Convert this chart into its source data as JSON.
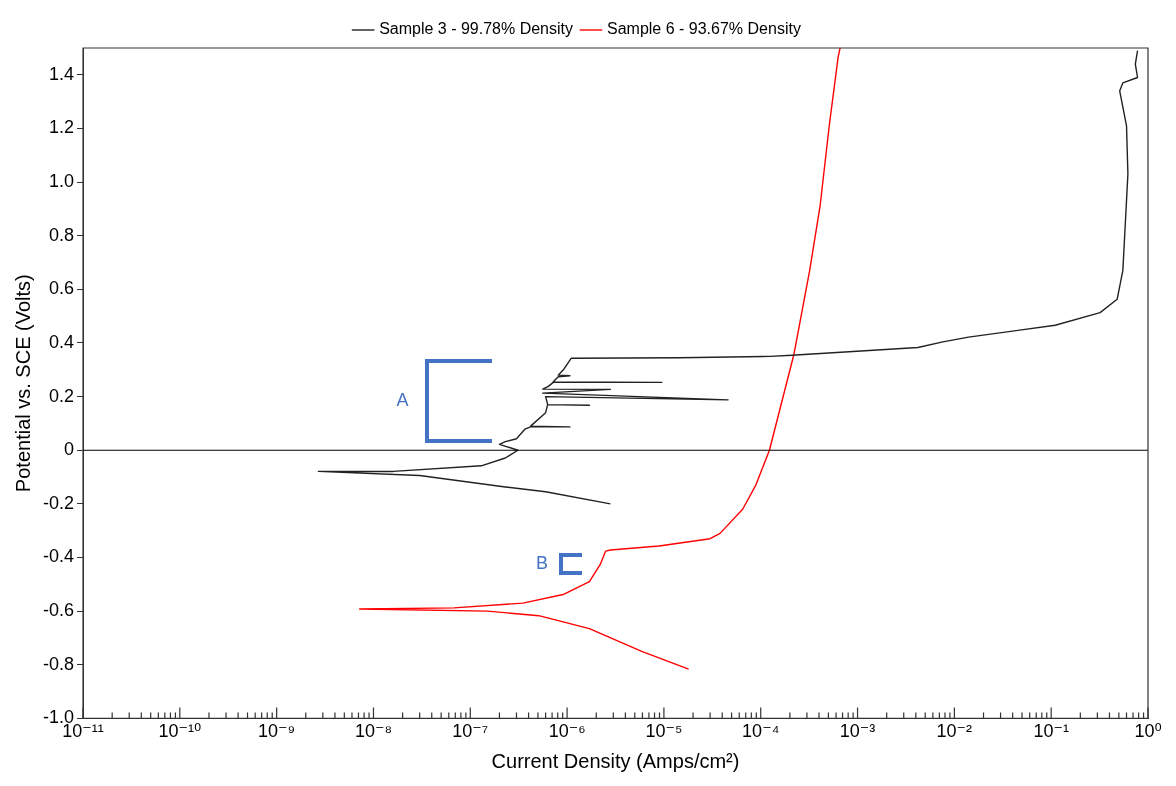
{
  "chart_data": {
    "type": "line",
    "xlabel": "Current Density (Amps/cm²)",
    "ylabel": "Potential vs. SCE (Volts)",
    "log": "x",
    "legend": "top",
    "xlim": [
      1e-11,
      1
    ],
    "ylim": [
      -1,
      1.5
    ],
    "xticks": [
      {
        "value": 1e-11,
        "label": "10⁻¹¹"
      },
      {
        "value": 2e-11,
        "label": null
      },
      {
        "value": 3e-11,
        "label": null
      },
      {
        "value": 4e-11,
        "label": null
      },
      {
        "value": 5e-11,
        "label": null
      },
      {
        "value": 6e-11,
        "label": null
      },
      {
        "value": 7e-11,
        "label": null
      },
      {
        "value": 8e-11,
        "label": null
      },
      {
        "value": 9e-11,
        "label": null
      },
      {
        "value": 1e-10,
        "label": "10⁻¹⁰"
      },
      {
        "value": 2e-10,
        "label": null
      },
      {
        "value": 3e-10,
        "label": null
      },
      {
        "value": 4e-10,
        "label": null
      },
      {
        "value": 5e-10,
        "label": null
      },
      {
        "value": 6e-10,
        "label": null
      },
      {
        "value": 7e-10,
        "label": null
      },
      {
        "value": 8e-10,
        "label": null
      },
      {
        "value": 9e-10,
        "label": null
      },
      {
        "value": 1e-09,
        "label": "10⁻⁹"
      },
      {
        "value": 2e-09,
        "label": null
      },
      {
        "value": 3e-09,
        "label": null
      },
      {
        "value": 4e-09,
        "label": null
      },
      {
        "value": 5e-09,
        "label": null
      },
      {
        "value": 6e-09,
        "label": null
      },
      {
        "value": 7e-09,
        "label": null
      },
      {
        "value": 8e-09,
        "label": null
      },
      {
        "value": 9e-09,
        "label": null
      },
      {
        "value": 1e-08,
        "label": "10⁻⁸"
      },
      {
        "value": 2e-08,
        "label": null
      },
      {
        "value": 3e-08,
        "label": null
      },
      {
        "value": 4e-08,
        "label": null
      },
      {
        "value": 5e-08,
        "label": null
      },
      {
        "value": 6e-08,
        "label": null
      },
      {
        "value": 7e-08,
        "label": null
      },
      {
        "value": 8e-08,
        "label": null
      },
      {
        "value": 9e-08,
        "label": null
      },
      {
        "value": 1e-07,
        "label": "10⁻⁷"
      },
      {
        "value": 2e-07,
        "label": null
      },
      {
        "value": 3e-07,
        "label": null
      },
      {
        "value": 4e-07,
        "label": null
      },
      {
        "value": 5e-07,
        "label": null
      },
      {
        "value": 6e-07,
        "label": null
      },
      {
        "value": 7e-07,
        "label": null
      },
      {
        "value": 8e-07,
        "label": null
      },
      {
        "value": 9e-07,
        "label": null
      },
      {
        "value": 1e-06,
        "label": "10⁻⁶"
      },
      {
        "value": 2e-06,
        "label": null
      },
      {
        "value": 3e-06,
        "label": null
      },
      {
        "value": 4e-06,
        "label": null
      },
      {
        "value": 5e-06,
        "label": null
      },
      {
        "value": 6e-06,
        "label": null
      },
      {
        "value": 7e-06,
        "label": null
      },
      {
        "value": 8e-06,
        "label": null
      },
      {
        "value": 9e-06,
        "label": null
      },
      {
        "value": 1e-05,
        "label": "10⁻⁵"
      },
      {
        "value": 2e-05,
        "label": null
      },
      {
        "value": 3e-05,
        "label": null
      },
      {
        "value": 4e-05,
        "label": null
      },
      {
        "value": 5e-05,
        "label": null
      },
      {
        "value": 6e-05,
        "label": null
      },
      {
        "value": 7e-05,
        "label": null
      },
      {
        "value": 8e-05,
        "label": null
      },
      {
        "value": 9e-05,
        "label": null
      },
      {
        "value": 0.0001,
        "label": "10⁻⁴"
      },
      {
        "value": 0.0002,
        "label": null
      },
      {
        "value": 0.0003,
        "label": null
      },
      {
        "value": 0.0004,
        "label": null
      },
      {
        "value": 0.0005,
        "label": null
      },
      {
        "value": 0.0006,
        "label": null
      },
      {
        "value": 0.0007,
        "label": null
      },
      {
        "value": 0.0008,
        "label": null
      },
      {
        "value": 0.0009,
        "label": null
      },
      {
        "value": 0.001,
        "label": "10⁻³"
      },
      {
        "value": 0.002,
        "label": null
      },
      {
        "value": 0.003,
        "label": null
      },
      {
        "value": 0.004,
        "label": null
      },
      {
        "value": 0.005,
        "label": null
      },
      {
        "value": 0.006,
        "label": null
      },
      {
        "value": 0.007,
        "label": null
      },
      {
        "value": 0.008,
        "label": null
      },
      {
        "value": 0.009,
        "label": null
      },
      {
        "value": 0.01,
        "label": "10⁻²"
      },
      {
        "value": 0.02,
        "label": null
      },
      {
        "value": 0.03,
        "label": null
      },
      {
        "value": 0.04,
        "label": null
      },
      {
        "value": 0.05,
        "label": null
      },
      {
        "value": 0.06,
        "label": null
      },
      {
        "value": 0.07,
        "label": null
      },
      {
        "value": 0.08,
        "label": null
      },
      {
        "value": 0.09,
        "label": null
      },
      {
        "value": 0.1,
        "label": "10⁻¹"
      },
      {
        "value": 0.2,
        "label": null
      },
      {
        "value": 0.3,
        "label": null
      },
      {
        "value": 0.4,
        "label": null
      },
      {
        "value": 0.5,
        "label": null
      },
      {
        "value": 0.6,
        "label": null
      },
      {
        "value": 0.7,
        "label": null
      },
      {
        "value": 0.8,
        "label": null
      },
      {
        "value": 0.9,
        "label": null
      },
      {
        "value": 1,
        "label": "10⁰"
      }
    ],
    "yticks": [
      {
        "value": -1,
        "label": "-1.0"
      },
      -0.8,
      -0.6,
      -0.4,
      -0.2,
      0,
      0.2,
      0.4,
      0.6,
      0.8,
      {
        "value": 1,
        "label": "1.0"
      },
      1.2,
      1.4
    ],
    "ref_lines": [
      {
        "axis": "y",
        "value": 0,
        "color": "#000000"
      }
    ],
    "annotations": [
      "A",
      "B"
    ],
    "series": [
      {
        "name": "Sample 3 - 99.78% Density",
        "color": "#222222",
        "x": [
          2.8e-06,
          6e-07,
          2.3e-07,
          3e-08,
          2.7e-09,
          1.6e-08,
          1.3e-07,
          2.3e-07,
          3.1e-07,
          2e-07,
          2.3e-07,
          3e-07,
          3.7e-07,
          4.2e-07,
          1.07e-06,
          4.2e-07,
          6e-07,
          6.3e-07,
          1.7e-06,
          6.3e-07,
          6e-07,
          4.6e-05,
          5.6e-07,
          2.8e-06,
          5.6e-07,
          6.4e-07,
          7.2e-07,
          9.5e-06,
          7.2e-07,
          8.1e-07,
          1.07e-06,
          8.1e-07,
          9.3e-07,
          1.1e-06,
          1.45e-05,
          0.000126,
          0.00021,
          0.0042,
          0.0076,
          0.014,
          0.11,
          0.32,
          0.48,
          0.55,
          0.62,
          0.6,
          0.51,
          0.55,
          0.78,
          0.74,
          0.78
        ],
        "values": [
          -0.2,
          -0.155,
          -0.137,
          -0.094,
          -0.079,
          -0.079,
          -0.058,
          -0.029,
          0,
          0.022,
          0.032,
          0.043,
          0.08,
          0.087,
          0.087,
          0.09,
          0.14,
          0.17,
          0.168,
          0.17,
          0.2,
          0.188,
          0.213,
          0.227,
          0.228,
          0.238,
          0.253,
          0.253,
          0.255,
          0.274,
          0.278,
          0.28,
          0.303,
          0.343,
          0.345,
          0.35,
          0.354,
          0.383,
          0.404,
          0.422,
          0.466,
          0.513,
          0.563,
          0.671,
          1.03,
          1.21,
          1.34,
          1.37,
          1.39,
          1.44,
          1.49
        ]
      },
      {
        "name": "Sample 6 - 93.67% Density",
        "color": "#ff0000",
        "x": [
          1.8e-05,
          5.9e-06,
          1.7e-06,
          5.1e-07,
          1.5e-07,
          7.2e-09,
          6.8e-08,
          3.5e-07,
          9.1e-07,
          1.7e-06,
          2.2e-06,
          2.5e-06,
          2.8e-06,
          8.9e-06,
          3e-05,
          3.8e-05,
          6.5e-05,
          7.1e-05,
          8.9e-05,
          0.000123,
          0.00022,
          0.00032,
          0.00041,
          0.00051,
          0.00063,
          0.00066
        ],
        "values": [
          -0.816,
          -0.75,
          -0.665,
          -0.617,
          -0.6,
          -0.592,
          -0.588,
          -0.57,
          -0.538,
          -0.49,
          -0.426,
          -0.376,
          -0.372,
          -0.357,
          -0.33,
          -0.31,
          -0.22,
          -0.195,
          -0.13,
          0,
          0.357,
          0.67,
          0.91,
          1.21,
          1.466,
          1.5
        ]
      }
    ]
  }
}
